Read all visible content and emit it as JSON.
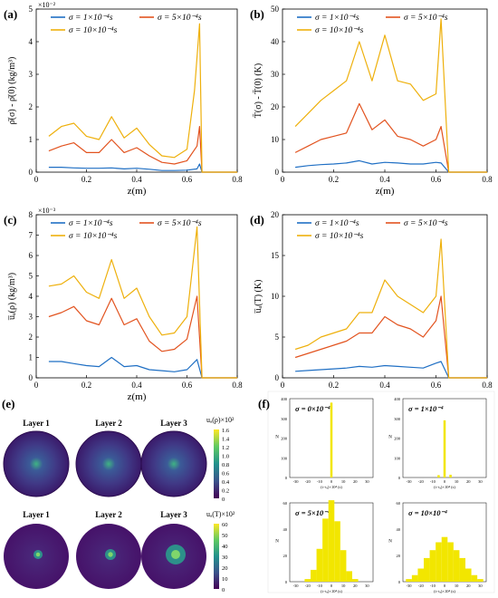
{
  "colors": {
    "s1": "#1f6fc4",
    "s5": "#e2531f",
    "s10": "#eeb00c",
    "hist": "#f2e600"
  },
  "panels": [
    {
      "label": "(a)",
      "scale_note": "×10⁻²",
      "ylabel": "ρ̄(σ) - ρ̄(0)  (kg/m³)",
      "xlabel": "z(m)",
      "yticks": [
        "0",
        "1",
        "2",
        "3",
        "4",
        "5"
      ],
      "xticks": [
        "0",
        "0.2",
        "0.4",
        "0.6",
        "0.8"
      ],
      "legend": [
        "σ = 1×10⁻⁴s",
        "σ = 5×10⁻⁴s",
        "σ = 10×10⁻⁴s"
      ]
    },
    {
      "label": "(b)",
      "scale_note": "",
      "ylabel": "T̄(σ) - T̄(0)  (K)",
      "xlabel": "z(m)",
      "yticks": [
        "0",
        "10",
        "20",
        "30",
        "40",
        "50"
      ],
      "xticks": [
        "0",
        "0.2",
        "0.4",
        "0.6",
        "0.8"
      ],
      "legend": [
        "σ = 1×10⁻⁴s",
        "σ = 5×10⁻⁴s",
        "σ = 10×10⁻⁴s"
      ]
    },
    {
      "label": "(c)",
      "scale_note": "×10⁻³",
      "ylabel": "u̅ₐ(ρ)  (kg/m³)",
      "xlabel": "z(m)",
      "yticks": [
        "0",
        "1",
        "2",
        "3",
        "4",
        "5",
        "6",
        "7",
        "8"
      ],
      "xticks": [
        "0",
        "0.2",
        "0.4",
        "0.6",
        "0.8"
      ],
      "legend": [
        "σ = 1×10⁻⁴s",
        "σ = 5×10⁻⁴s",
        "σ = 10×10⁻⁴s"
      ]
    },
    {
      "label": "(d)",
      "scale_note": "",
      "ylabel": "u̅ₐ(T)  (K)",
      "xlabel": "z(m)",
      "yticks": [
        "0",
        "5",
        "10",
        "15",
        "20"
      ],
      "xticks": [
        "0",
        "0.2",
        "0.4",
        "0.6",
        "0.8"
      ],
      "legend": [
        "σ = 1×10⁻⁴s",
        "σ = 5×10⁻⁴s",
        "σ = 10×10⁻⁴s"
      ]
    }
  ],
  "panel_e": {
    "label": "(e)",
    "layers": [
      "Layer 1",
      "Layer 2",
      "Layer 3"
    ],
    "cbar_top_title": "uₐ(ρ)×10²",
    "cbar_top_ticks": [
      "1.6",
      "1.4",
      "1.2",
      "1.0",
      "0.8",
      "0.6",
      "0.4",
      "0.2",
      "0"
    ],
    "cbar_bottom_title": "uₐ(T)×10²",
    "cbar_bottom_ticks": [
      "60",
      "50",
      "40",
      "30",
      "20",
      "10",
      "0"
    ]
  },
  "panel_f": {
    "label": "(f)",
    "titles": [
      "σ = 0×10⁻⁴",
      "σ = 1×10⁻⁴",
      "σ = 5×10⁻⁴",
      "σ = 10×10⁻⁴"
    ],
    "yticks_top": [
      "0",
      "100",
      "200",
      "300",
      "400"
    ],
    "yticks_bottom": [
      "0",
      "20",
      "40",
      "60"
    ],
    "xticks": [
      "-30",
      "-20",
      "-10",
      "0",
      "10",
      "20",
      "30"
    ],
    "xlabel": "(t−tₓ)×10⁴ (s)",
    "ylabel": "N"
  },
  "chart_data": [
    {
      "type": "line",
      "panel": "a",
      "xlim": [
        0,
        0.8
      ],
      "ylim": [
        0,
        5
      ],
      "series": [
        {
          "name": "σ = 1×10⁻⁴s",
          "x": [
            0.05,
            0.1,
            0.15,
            0.2,
            0.25,
            0.3,
            0.35,
            0.4,
            0.45,
            0.5,
            0.55,
            0.6,
            0.64,
            0.65,
            0.66,
            0.8
          ],
          "y": [
            0.15,
            0.15,
            0.13,
            0.12,
            0.12,
            0.13,
            0.1,
            0.12,
            0.09,
            0.05,
            0.05,
            0.06,
            0.1,
            0.25,
            0.0,
            0.0
          ]
        },
        {
          "name": "σ = 5×10⁻⁴s",
          "x": [
            0.05,
            0.1,
            0.15,
            0.2,
            0.25,
            0.3,
            0.35,
            0.4,
            0.45,
            0.5,
            0.55,
            0.6,
            0.64,
            0.65,
            0.66,
            0.8
          ],
          "y": [
            0.65,
            0.8,
            0.9,
            0.6,
            0.6,
            1.0,
            0.6,
            0.75,
            0.5,
            0.3,
            0.25,
            0.35,
            0.8,
            1.4,
            0.0,
            0.0
          ]
        },
        {
          "name": "σ = 10×10⁻⁴s",
          "x": [
            0.05,
            0.1,
            0.15,
            0.2,
            0.25,
            0.3,
            0.35,
            0.4,
            0.45,
            0.5,
            0.55,
            0.6,
            0.63,
            0.65,
            0.66,
            0.8
          ],
          "y": [
            1.1,
            1.4,
            1.5,
            1.1,
            1.0,
            1.7,
            1.05,
            1.35,
            0.85,
            0.5,
            0.45,
            0.7,
            2.5,
            4.55,
            0.0,
            0.0
          ]
        }
      ]
    },
    {
      "type": "line",
      "panel": "b",
      "xlim": [
        0,
        0.8
      ],
      "ylim": [
        0,
        50
      ],
      "series": [
        {
          "name": "σ = 1×10⁻⁴s",
          "x": [
            0.05,
            0.1,
            0.15,
            0.2,
            0.25,
            0.3,
            0.35,
            0.4,
            0.45,
            0.5,
            0.55,
            0.6,
            0.62,
            0.65,
            0.8
          ],
          "y": [
            1.5,
            2.0,
            2.3,
            2.5,
            2.8,
            3.5,
            2.5,
            3.0,
            2.8,
            2.5,
            2.5,
            3.0,
            2.8,
            0.0,
            0.0
          ]
        },
        {
          "name": "σ = 5×10⁻⁴s",
          "x": [
            0.05,
            0.1,
            0.15,
            0.2,
            0.25,
            0.3,
            0.35,
            0.4,
            0.45,
            0.5,
            0.55,
            0.6,
            0.62,
            0.65,
            0.8
          ],
          "y": [
            6,
            8,
            10,
            11,
            12,
            21,
            13,
            16,
            11,
            10,
            8,
            10,
            14,
            0,
            0
          ]
        },
        {
          "name": "σ = 10×10⁻⁴s",
          "x": [
            0.05,
            0.1,
            0.15,
            0.2,
            0.25,
            0.3,
            0.35,
            0.4,
            0.45,
            0.5,
            0.55,
            0.6,
            0.62,
            0.65,
            0.8
          ],
          "y": [
            14,
            18,
            22,
            25,
            28,
            40,
            28,
            42,
            28,
            27,
            22,
            24,
            47,
            0,
            0
          ]
        }
      ]
    },
    {
      "type": "line",
      "panel": "c",
      "xlim": [
        0,
        0.8
      ],
      "ylim": [
        0,
        8
      ],
      "series": [
        {
          "name": "σ = 1×10⁻⁴s",
          "x": [
            0.05,
            0.1,
            0.15,
            0.2,
            0.25,
            0.3,
            0.35,
            0.4,
            0.45,
            0.5,
            0.55,
            0.6,
            0.64,
            0.66,
            0.8
          ],
          "y": [
            0.8,
            0.8,
            0.7,
            0.6,
            0.55,
            1.0,
            0.55,
            0.6,
            0.4,
            0.35,
            0.3,
            0.4,
            0.9,
            0.0,
            0.0
          ]
        },
        {
          "name": "σ = 5×10⁻⁴s",
          "x": [
            0.05,
            0.1,
            0.15,
            0.2,
            0.25,
            0.3,
            0.35,
            0.4,
            0.45,
            0.5,
            0.55,
            0.6,
            0.64,
            0.66,
            0.8
          ],
          "y": [
            3.0,
            3.2,
            3.5,
            2.8,
            2.6,
            3.9,
            2.6,
            2.9,
            1.8,
            1.3,
            1.4,
            1.9,
            4.0,
            0.0,
            0.0
          ]
        },
        {
          "name": "σ = 10×10⁻⁴s",
          "x": [
            0.05,
            0.1,
            0.15,
            0.2,
            0.25,
            0.3,
            0.35,
            0.4,
            0.45,
            0.5,
            0.55,
            0.6,
            0.64,
            0.66,
            0.8
          ],
          "y": [
            4.5,
            4.6,
            5.0,
            4.2,
            3.9,
            5.8,
            3.9,
            4.4,
            3.0,
            2.1,
            2.2,
            3.0,
            7.4,
            0.0,
            0.0
          ]
        }
      ]
    },
    {
      "type": "line",
      "panel": "d",
      "xlim": [
        0,
        0.8
      ],
      "ylim": [
        0,
        20
      ],
      "series": [
        {
          "name": "σ = 1×10⁻⁴s",
          "x": [
            0.05,
            0.1,
            0.15,
            0.2,
            0.25,
            0.3,
            0.35,
            0.4,
            0.45,
            0.5,
            0.55,
            0.6,
            0.62,
            0.65,
            0.8
          ],
          "y": [
            0.8,
            0.9,
            1.0,
            1.1,
            1.2,
            1.4,
            1.3,
            1.5,
            1.4,
            1.3,
            1.2,
            1.8,
            2.0,
            0.0,
            0.0
          ]
        },
        {
          "name": "σ = 5×10⁻⁴s",
          "x": [
            0.05,
            0.1,
            0.15,
            0.2,
            0.25,
            0.3,
            0.35,
            0.4,
            0.45,
            0.5,
            0.55,
            0.6,
            0.62,
            0.65,
            0.8
          ],
          "y": [
            2.5,
            3.0,
            3.5,
            4.0,
            4.5,
            5.5,
            5.5,
            7.5,
            6.5,
            6.0,
            5.0,
            7.0,
            10.0,
            0.0,
            0.0
          ]
        },
        {
          "name": "σ = 10×10⁻⁴s",
          "x": [
            0.05,
            0.1,
            0.15,
            0.2,
            0.25,
            0.3,
            0.35,
            0.4,
            0.45,
            0.5,
            0.55,
            0.6,
            0.62,
            0.65,
            0.8
          ],
          "y": [
            3.5,
            4.0,
            5.0,
            5.5,
            6.0,
            8.0,
            8.0,
            12.0,
            10.0,
            9.0,
            8.0,
            10.0,
            17.0,
            0.0,
            0.0
          ]
        }
      ]
    },
    {
      "type": "bar",
      "panel": "f",
      "titles": [
        "σ = 0×10⁻⁴",
        "σ = 1×10⁻⁴",
        "σ = 5×10⁻⁴",
        "σ = 10×10⁻⁴"
      ],
      "x": [
        -30,
        -25,
        -20,
        -15,
        -10,
        -5,
        0,
        5,
        10,
        15,
        20,
        25,
        30
      ],
      "series": [
        {
          "name": "σ = 0×10⁻⁴",
          "values": [
            0,
            0,
            0,
            0,
            0,
            0,
            380,
            0,
            0,
            0,
            0,
            0,
            0
          ]
        },
        {
          "name": "σ = 1×10⁻⁴",
          "values": [
            0,
            0,
            0,
            0,
            0,
            12,
            290,
            14,
            0,
            0,
            0,
            0,
            0
          ]
        },
        {
          "name": "σ = 5×10⁻⁴",
          "values": [
            0,
            0,
            2,
            9,
            25,
            48,
            62,
            46,
            24,
            8,
            2,
            0,
            0
          ]
        },
        {
          "name": "σ = 10×10⁻⁴",
          "values": [
            2,
            5,
            10,
            18,
            24,
            30,
            34,
            30,
            24,
            18,
            10,
            5,
            2
          ]
        }
      ]
    }
  ]
}
